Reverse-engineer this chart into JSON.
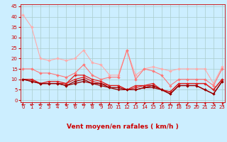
{
  "xlabel": "Vent moyen/en rafales ( km/h )",
  "bg_color": "#cceeff",
  "grid_color": "#aacccc",
  "x_ticks": [
    0,
    1,
    2,
    3,
    4,
    5,
    6,
    7,
    8,
    9,
    10,
    11,
    12,
    13,
    14,
    15,
    16,
    17,
    18,
    19,
    20,
    21,
    22,
    23
  ],
  "y_ticks": [
    0,
    5,
    10,
    15,
    20,
    25,
    30,
    35,
    40,
    45
  ],
  "xlim": [
    -0.3,
    23.3
  ],
  "ylim": [
    -1,
    46
  ],
  "lines": [
    {
      "color": "#ffaaaa",
      "lw": 0.8,
      "marker": "D",
      "ms": 2.0,
      "data_y": [
        41,
        35,
        20,
        19,
        20,
        19,
        20,
        24,
        18,
        17,
        12,
        12,
        24,
        12,
        15,
        16,
        15,
        14,
        15,
        15,
        15,
        15,
        8,
        16
      ]
    },
    {
      "color": "#ff7777",
      "lw": 0.8,
      "marker": "D",
      "ms": 2.0,
      "data_y": [
        15,
        15,
        13,
        13,
        12,
        11,
        13,
        17,
        12,
        10,
        11,
        11,
        24,
        10,
        15,
        14,
        12,
        7,
        10,
        10,
        10,
        10,
        7,
        15
      ]
    },
    {
      "color": "#dd2222",
      "lw": 0.9,
      "marker": "D",
      "ms": 1.8,
      "data_y": [
        10,
        10,
        8,
        8,
        8,
        8,
        10,
        11,
        9,
        8,
        7,
        7,
        5,
        6,
        7,
        7,
        5,
        4,
        8,
        8,
        8,
        8,
        5,
        10
      ]
    },
    {
      "color": "#dd2222",
      "lw": 0.9,
      "marker": "D",
      "ms": 1.8,
      "data_y": [
        10,
        10,
        8,
        9,
        9,
        8,
        12,
        12,
        10,
        9,
        7,
        7,
        5,
        7,
        7,
        8,
        5,
        4,
        8,
        8,
        8,
        8,
        5,
        10
      ]
    },
    {
      "color": "#990000",
      "lw": 0.9,
      "marker": "D",
      "ms": 1.8,
      "data_y": [
        10,
        9,
        8,
        8,
        8,
        7,
        8,
        9,
        8,
        7,
        6,
        5,
        5,
        5,
        6,
        6,
        5,
        3,
        7,
        7,
        7,
        5,
        3,
        9
      ]
    },
    {
      "color": "#990000",
      "lw": 0.9,
      "marker": "D",
      "ms": 1.8,
      "data_y": [
        10,
        9,
        8,
        8,
        8,
        7,
        9,
        10,
        8,
        8,
        6,
        6,
        5,
        5,
        6,
        7,
        5,
        3,
        7,
        7,
        7,
        5,
        3,
        9
      ]
    }
  ],
  "arrow_symbols": [
    "←",
    "←",
    "←",
    "←",
    "←",
    "←",
    "←",
    "←",
    "←",
    "←",
    "←",
    "↑",
    "↗",
    "↗",
    "↗",
    "↗",
    "↗",
    "←",
    "←",
    "↙",
    "↓",
    "↑",
    "↘",
    "↑"
  ],
  "xlabel_fontsize": 6.5,
  "tick_fontsize": 5.0,
  "arrow_fontsize": 5.5
}
